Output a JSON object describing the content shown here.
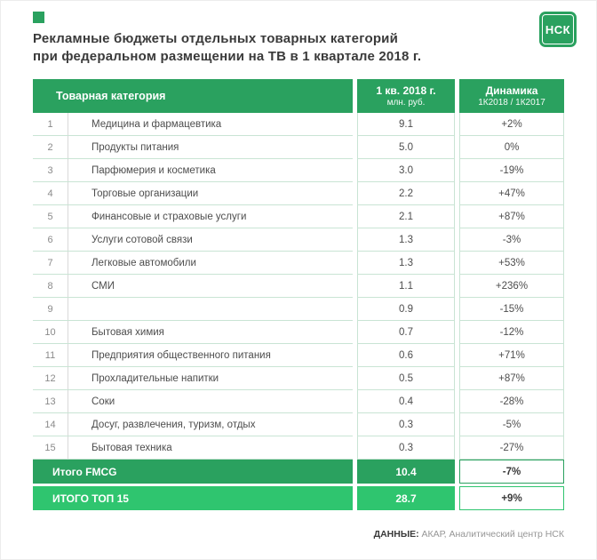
{
  "title": {
    "line1": "Рекламные бюджеты отдельных товарных категорий",
    "line2": "при федеральном размещении на ТВ в 1 квартале 2018 г."
  },
  "logo": {
    "text": "НСК"
  },
  "colors": {
    "header_green": "#2aa15f",
    "total_top15_green": "#2fc56f",
    "row_line_green": "#c9e4d4"
  },
  "table": {
    "headers": {
      "category": "Товарная категория",
      "value_line1": "1 кв. 2018 г.",
      "value_line2": "млн. руб.",
      "dynamics_line1": "Динамика",
      "dynamics_line2": "1К2018 / 1К2017"
    },
    "rows": [
      {
        "num": "1",
        "category": "Медицина и фармацевтика",
        "value": "9.1",
        "dynamics": "+2%"
      },
      {
        "num": "2",
        "category": "Продукты питания",
        "value": "5.0",
        "dynamics": "0%"
      },
      {
        "num": "3",
        "category": "Парфюмерия и косметика",
        "value": "3.0",
        "dynamics": "-19%"
      },
      {
        "num": "4",
        "category": "Торговые организации",
        "value": "2.2",
        "dynamics": "+47%"
      },
      {
        "num": "5",
        "category": "Финансовые и страховые услуги",
        "value": "2.1",
        "dynamics": "+87%"
      },
      {
        "num": "6",
        "category": "Услуги сотовой связи",
        "value": "1.3",
        "dynamics": "-3%"
      },
      {
        "num": "7",
        "category": "Легковые автомобили",
        "value": "1.3",
        "dynamics": "+53%"
      },
      {
        "num": "8",
        "category": "СМИ",
        "value": "1.1",
        "dynamics": "+236%"
      },
      {
        "num": "9",
        "category": "",
        "value": "0.9",
        "dynamics": "-15%"
      },
      {
        "num": "10",
        "category": "Бытовая химия",
        "value": "0.7",
        "dynamics": "-12%"
      },
      {
        "num": "11",
        "category": "Предприятия общественного питания",
        "value": "0.6",
        "dynamics": "+71%"
      },
      {
        "num": "12",
        "category": "Прохладительные напитки",
        "value": "0.5",
        "dynamics": "+87%"
      },
      {
        "num": "13",
        "category": "Соки",
        "value": "0.4",
        "dynamics": "-28%"
      },
      {
        "num": "14",
        "category": "Досуг, развлечения, туризм, отдых",
        "value": "0.3",
        "dynamics": "-5%"
      },
      {
        "num": "15",
        "category": "Бытовая техника",
        "value": "0.3",
        "dynamics": "-27%"
      }
    ],
    "total_fmcg": {
      "label": "Итого FMCG",
      "value": "10.4",
      "dynamics": "-7%"
    },
    "total_top15": {
      "label": "ИТОГО ТОП 15",
      "value": "28.7",
      "dynamics": "+9%"
    }
  },
  "footer": {
    "label": "ДАННЫЕ:",
    "text": "АКАР, Аналитический центр НСК"
  },
  "chart_data": {
    "type": "table",
    "title": "Рекламные бюджеты отдельных товарных категорий при федеральном размещении на ТВ в 1 квартале 2018 г.",
    "columns": [
      "Товарная категория",
      "1 кв. 2018 г. млн. руб.",
      "Динамика 1К2018 / 1К2017"
    ],
    "categories": [
      "Медицина и фармацевтика",
      "Продукты питания",
      "Парфюмерия и косметика",
      "Торговые организации",
      "Финансовые и страховые услуги",
      "Услуги сотовой связи",
      "Легковые автомобили",
      "СМИ",
      "",
      "Бытовая химия",
      "Предприятия общественного питания",
      "Прохладительные напитки",
      "Соки",
      "Досуг, развлечения, туризм, отдых",
      "Бытовая техника"
    ],
    "series": [
      {
        "name": "1 кв. 2018 г., млн. руб.",
        "values": [
          9.1,
          5.0,
          3.0,
          2.2,
          2.1,
          1.3,
          1.3,
          1.1,
          0.9,
          0.7,
          0.6,
          0.5,
          0.4,
          0.3,
          0.3
        ]
      },
      {
        "name": "Динамика 1К2018 / 1К2017, %",
        "values": [
          2,
          0,
          -19,
          47,
          87,
          -3,
          53,
          236,
          -15,
          -12,
          71,
          87,
          -28,
          -5,
          -27
        ]
      }
    ],
    "totals": [
      {
        "label": "Итого FMCG",
        "value": 10.4,
        "dynamics_pct": -7
      },
      {
        "label": "ИТОГО ТОП 15",
        "value": 28.7,
        "dynamics_pct": 9
      }
    ]
  }
}
